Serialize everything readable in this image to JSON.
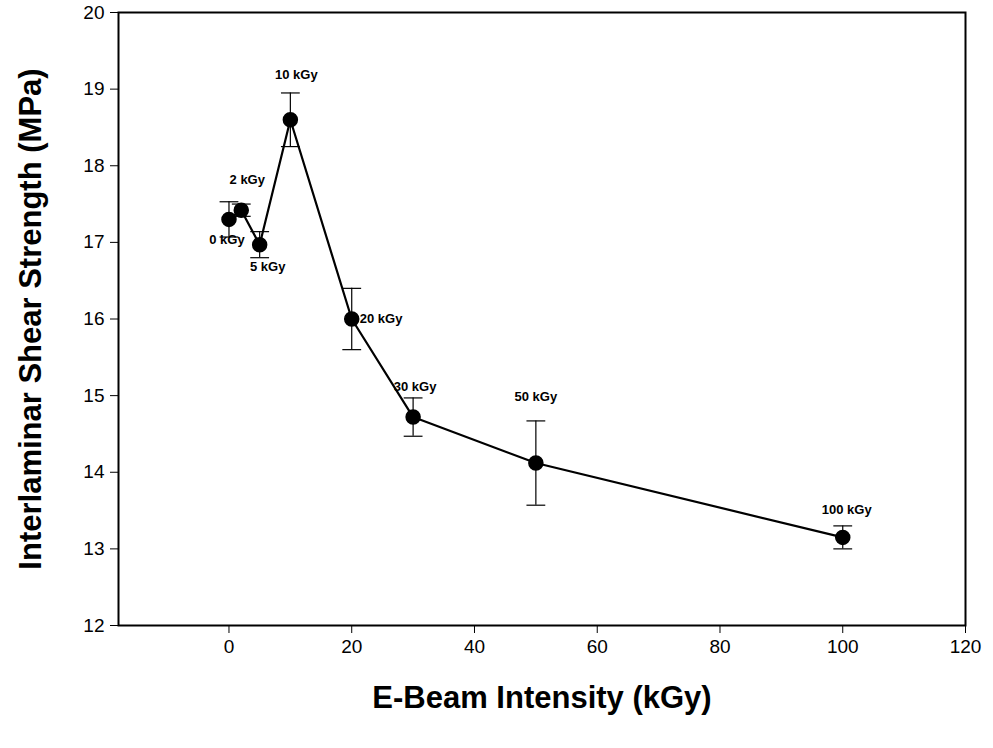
{
  "chart_data": {
    "type": "line",
    "x_label": "E-Beam Intensity (kGy)",
    "y_label": "Interlaminar Shear Strength (MPa)",
    "x": [
      0,
      2,
      5,
      10,
      20,
      30,
      50,
      100
    ],
    "values": [
      17.3,
      17.42,
      16.97,
      18.6,
      16.0,
      14.72,
      14.12,
      13.15
    ],
    "errors": [
      0.23,
      0.08,
      0.17,
      0.35,
      0.4,
      0.25,
      0.55,
      0.15
    ],
    "annotations": [
      "0 kGy",
      "2 kGy",
      "5 kGy",
      "10 kGy",
      "20 kGy",
      "30 kGy",
      "50 kGy",
      "100 kGy"
    ],
    "color": "#000000",
    "marker": "circle",
    "line_style": "solid",
    "xlim": [
      -18,
      120
    ],
    "xticks": [
      0,
      20,
      40,
      60,
      80,
      100,
      120
    ],
    "ylim": [
      12,
      20
    ],
    "yticks": [
      12,
      13,
      14,
      15,
      16,
      17,
      18,
      19,
      20
    ],
    "grid": false
  }
}
